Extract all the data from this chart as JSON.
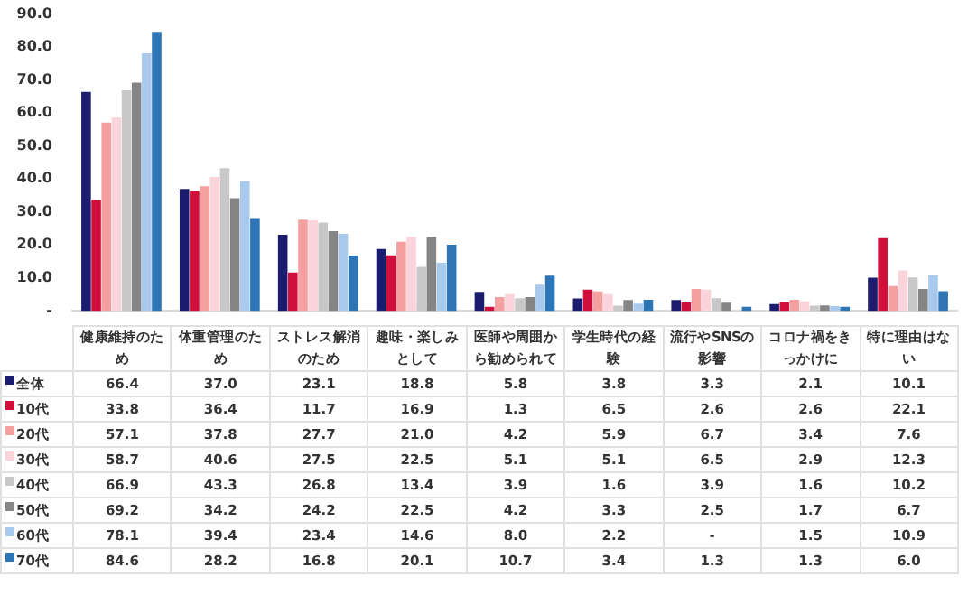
{
  "chart_data": {
    "type": "bar",
    "categories": [
      "健康維持のため",
      "体重管理のため",
      "ストレス解消のため",
      "趣味・楽しみとして",
      "医師や周囲から勧められて",
      "学生時代の経験",
      "流行やSNSの影響",
      "コロナ禍をきっかけに",
      "特に理由はない"
    ],
    "series": [
      {
        "name": "全体",
        "color": "#1b1b6f",
        "values": [
          66.4,
          37.0,
          23.1,
          18.8,
          5.8,
          3.8,
          3.3,
          2.1,
          10.1
        ],
        "value_labels": [
          "66.4",
          "37.0",
          "23.1",
          "18.8",
          "5.8",
          "3.8",
          "3.3",
          "2.1",
          "10.1"
        ]
      },
      {
        "name": "10代",
        "color": "#d0103a",
        "values": [
          33.8,
          36.4,
          11.7,
          16.9,
          1.3,
          6.5,
          2.6,
          2.6,
          22.1
        ],
        "value_labels": [
          "33.8",
          "36.4",
          "11.7",
          "16.9",
          "1.3",
          "6.5",
          "2.6",
          "2.6",
          "22.1"
        ]
      },
      {
        "name": "20代",
        "color": "#f4a0a0",
        "values": [
          57.1,
          37.8,
          27.7,
          21.0,
          4.2,
          5.9,
          6.7,
          3.4,
          7.6
        ],
        "value_labels": [
          "57.1",
          "37.8",
          "27.7",
          "21.0",
          "4.2",
          "5.9",
          "6.7",
          "3.4",
          "7.6"
        ]
      },
      {
        "name": "30代",
        "color": "#fbd3db",
        "values": [
          58.7,
          40.6,
          27.5,
          22.5,
          5.1,
          5.1,
          6.5,
          2.9,
          12.3
        ],
        "value_labels": [
          "58.7",
          "40.6",
          "27.5",
          "22.5",
          "5.1",
          "5.1",
          "6.5",
          "2.9",
          "12.3"
        ]
      },
      {
        "name": "40代",
        "color": "#c8c8c8",
        "values": [
          66.9,
          43.3,
          26.8,
          13.4,
          3.9,
          1.6,
          3.9,
          1.6,
          10.2
        ],
        "value_labels": [
          "66.9",
          "43.3",
          "26.8",
          "13.4",
          "3.9",
          "1.6",
          "3.9",
          "1.6",
          "10.2"
        ]
      },
      {
        "name": "50代",
        "color": "#858585",
        "values": [
          69.2,
          34.2,
          24.2,
          22.5,
          4.2,
          3.3,
          2.5,
          1.7,
          6.7
        ],
        "value_labels": [
          "69.2",
          "34.2",
          "24.2",
          "22.5",
          "4.2",
          "3.3",
          "2.5",
          "1.7",
          "6.7"
        ]
      },
      {
        "name": "60代",
        "color": "#a9c9ed",
        "values": [
          78.1,
          39.4,
          23.4,
          14.6,
          8.0,
          2.2,
          null,
          1.5,
          10.9
        ],
        "value_labels": [
          "78.1",
          "39.4",
          "23.4",
          "14.6",
          "8.0",
          "2.2",
          "-",
          "1.5",
          "10.9"
        ]
      },
      {
        "name": "70代",
        "color": "#2e75b6",
        "values": [
          84.6,
          28.2,
          16.8,
          20.1,
          10.7,
          3.4,
          1.3,
          1.3,
          6.0
        ],
        "value_labels": [
          "84.6",
          "28.2",
          "16.8",
          "20.1",
          "10.7",
          "3.4",
          "1.3",
          "1.3",
          "6.0"
        ]
      }
    ],
    "ylim": [
      0,
      90
    ],
    "yticks": [
      {
        "value": 0,
        "label": "-"
      },
      {
        "value": 10,
        "label": "10.0"
      },
      {
        "value": 20,
        "label": "20.0"
      },
      {
        "value": 30,
        "label": "30.0"
      },
      {
        "value": 40,
        "label": "40.0"
      },
      {
        "value": 50,
        "label": "50.0"
      },
      {
        "value": 60,
        "label": "60.0"
      },
      {
        "value": 70,
        "label": "70.0"
      },
      {
        "value": 80,
        "label": "80.0"
      },
      {
        "value": 90,
        "label": "90.0"
      }
    ],
    "grid": false,
    "legend": "bottom left",
    "tick_labels": "y"
  }
}
